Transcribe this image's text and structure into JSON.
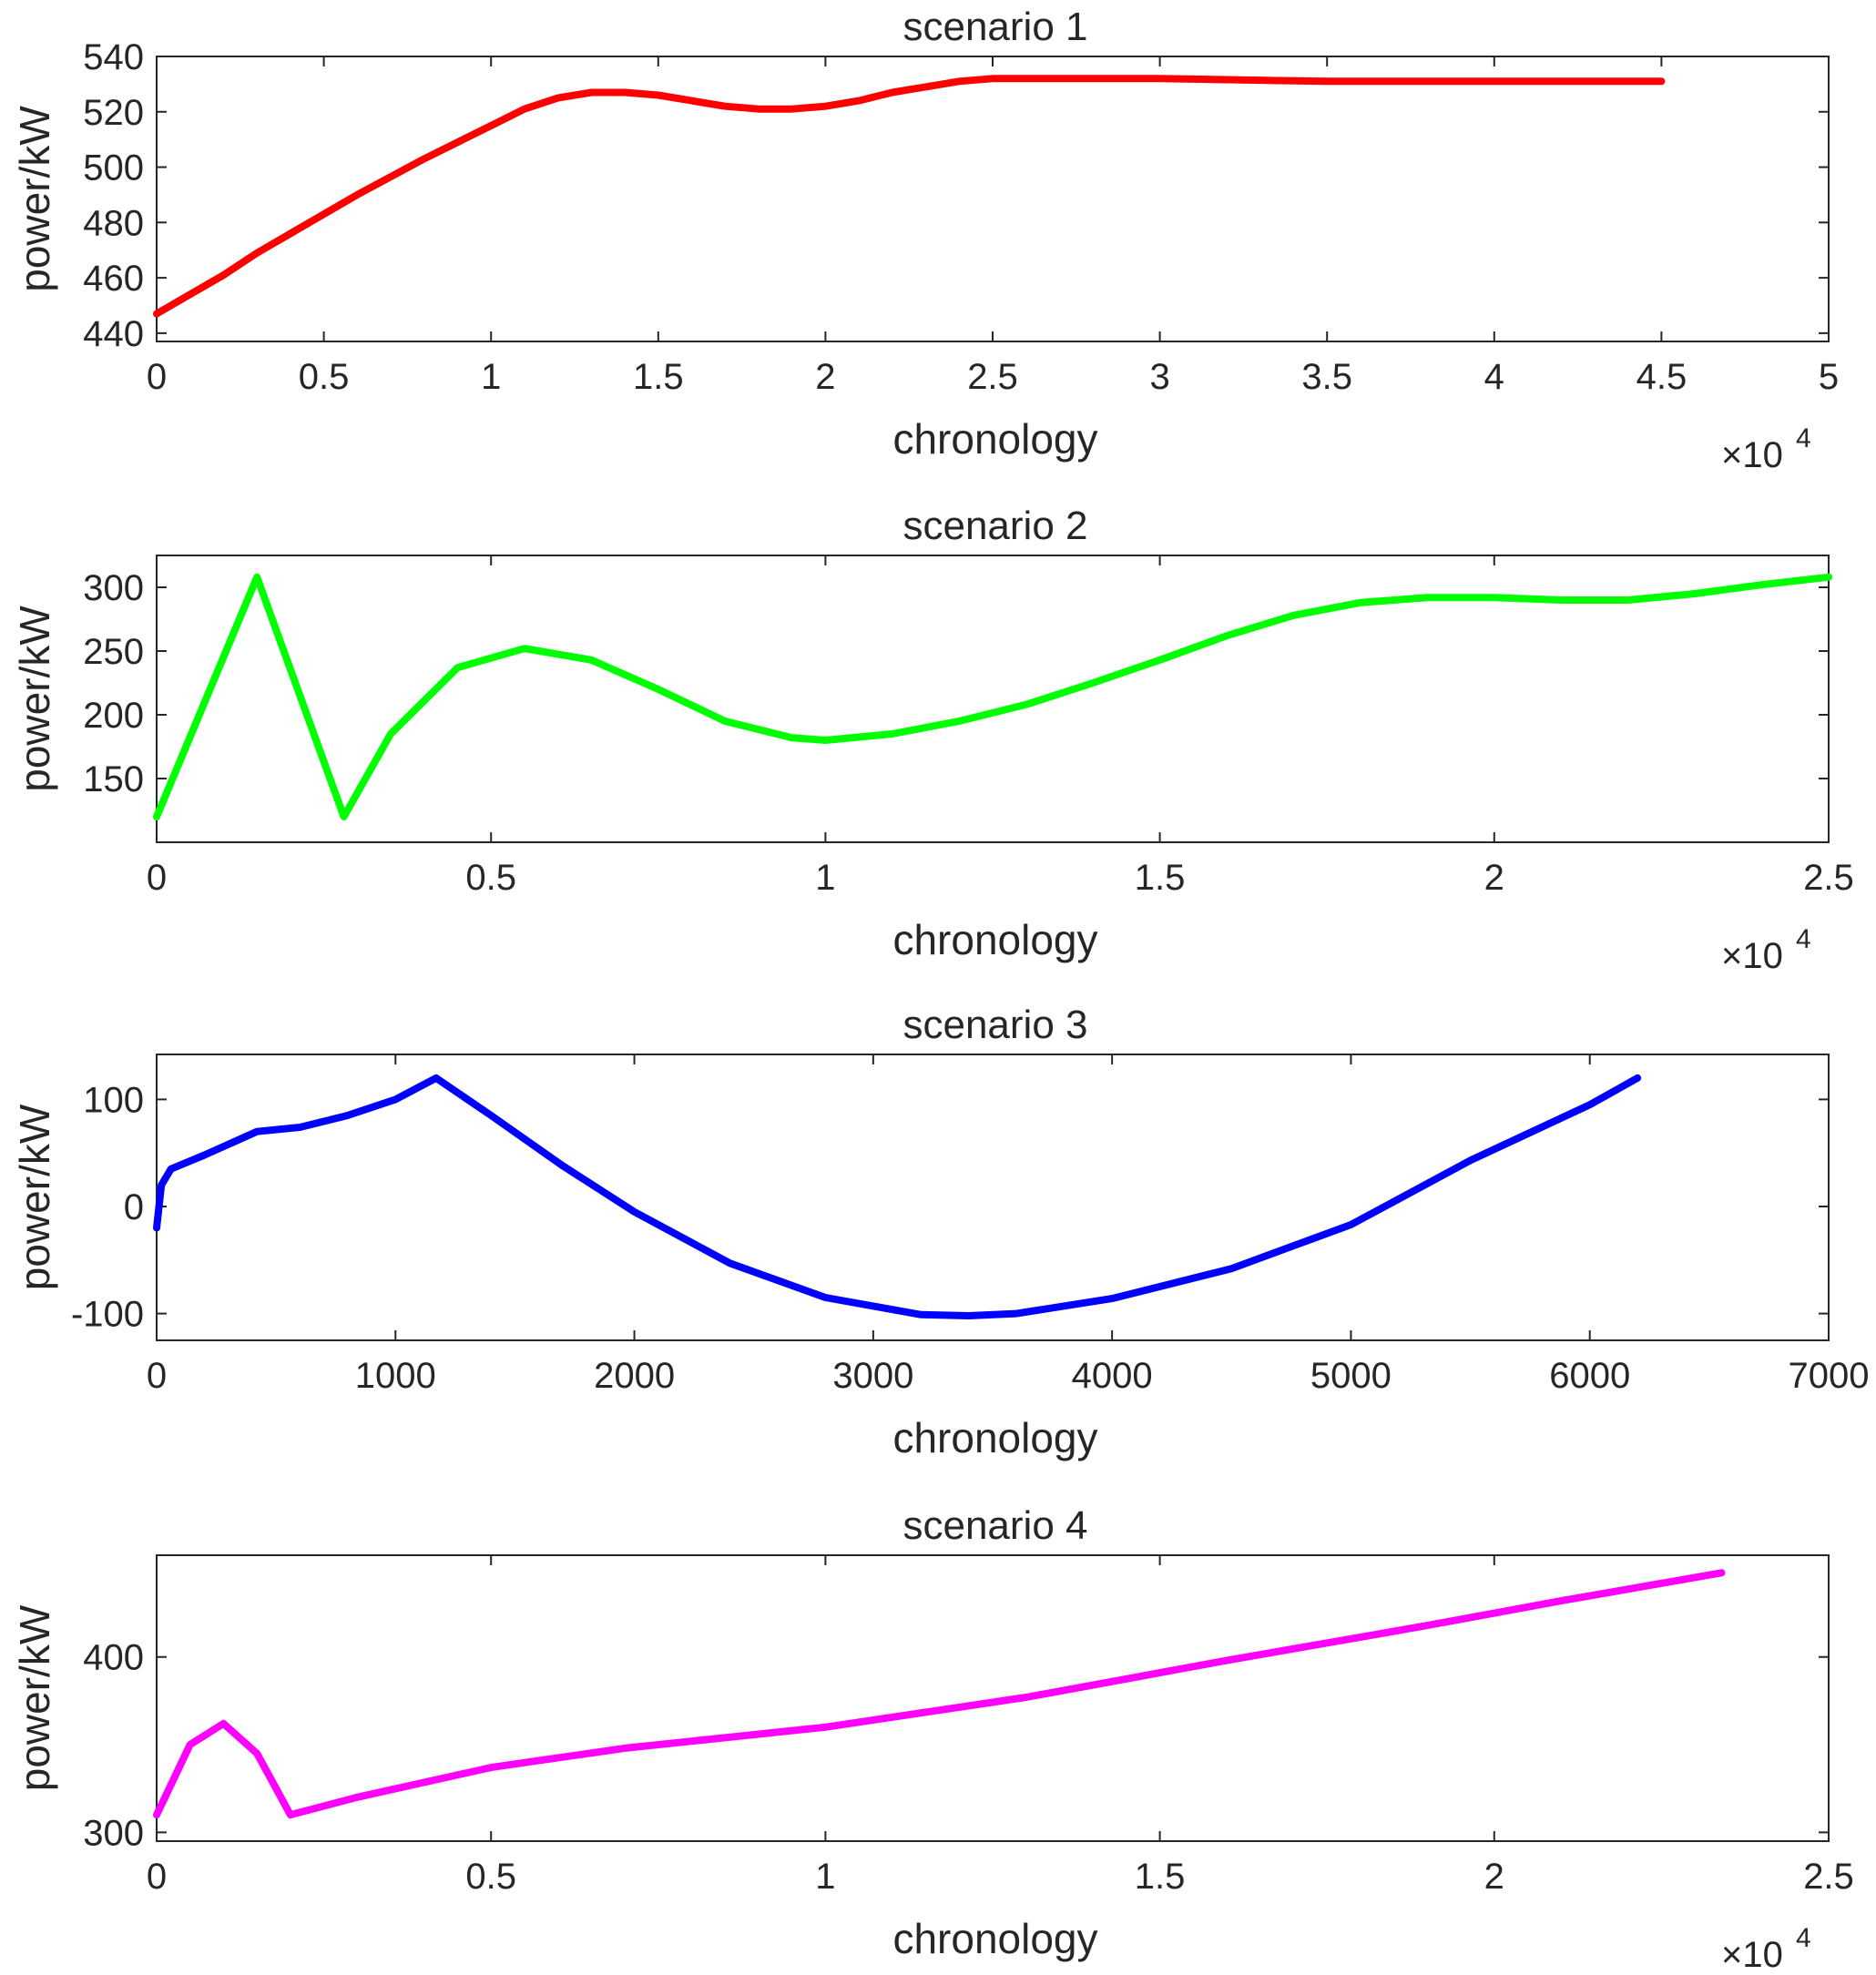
{
  "figure": {
    "background": "#ffffff",
    "axis_color": "#262626"
  },
  "chart_data": [
    {
      "type": "line",
      "title": "scenario 1",
      "xlabel": "chronology",
      "ylabel": "power/kW",
      "x_exponent": "4",
      "xlim": [
        0,
        5
      ],
      "ylim": [
        437,
        540
      ],
      "xticks": [
        0,
        0.5,
        1,
        1.5,
        2,
        2.5,
        3,
        3.5,
        4,
        4.5,
        5
      ],
      "xtick_labels": [
        "0",
        "0.5",
        "1",
        "1.5",
        "2",
        "2.5",
        "3",
        "3.5",
        "4",
        "4.5",
        "5"
      ],
      "yticks": [
        440,
        460,
        480,
        500,
        520,
        540
      ],
      "ytick_labels": [
        "440",
        "460",
        "480",
        "500",
        "520",
        "540"
      ],
      "grid": false,
      "series": [
        {
          "name": "scenario 1",
          "color": "#ff0000",
          "x": [
            0,
            0.1,
            0.2,
            0.3,
            0.4,
            0.6,
            0.8,
            1.0,
            1.1,
            1.2,
            1.3,
            1.4,
            1.5,
            1.6,
            1.7,
            1.8,
            1.9,
            2.0,
            2.1,
            2.2,
            2.3,
            2.4,
            2.5,
            2.6,
            2.8,
            3.0,
            3.5,
            4.0,
            4.5
          ],
          "y": [
            447,
            454,
            461,
            469,
            476,
            490,
            503,
            515,
            521,
            525,
            527,
            527,
            526,
            524,
            522,
            521,
            521,
            522,
            524,
            527,
            529,
            531,
            532,
            532,
            532,
            532,
            531,
            531,
            531
          ]
        }
      ]
    },
    {
      "type": "line",
      "title": "scenario 2",
      "xlabel": "chronology",
      "ylabel": "power/kW",
      "x_exponent": "4",
      "xlim": [
        0,
        2.5
      ],
      "ylim": [
        100,
        325
      ],
      "xticks": [
        0,
        0.5,
        1,
        1.5,
        2,
        2.5
      ],
      "xtick_labels": [
        "0",
        "0.5",
        "1",
        "1.5",
        "2",
        "2.5"
      ],
      "yticks": [
        150,
        200,
        250,
        300
      ],
      "ytick_labels": [
        "150",
        "200",
        "250",
        "300"
      ],
      "grid": false,
      "series": [
        {
          "name": "scenario 2",
          "color": "#00ff00",
          "x": [
            0,
            0.15,
            0.28,
            0.35,
            0.45,
            0.55,
            0.65,
            0.75,
            0.85,
            0.95,
            1.0,
            1.1,
            1.2,
            1.3,
            1.4,
            1.5,
            1.6,
            1.7,
            1.8,
            1.9,
            2.0,
            2.1,
            2.2,
            2.3,
            2.4,
            2.5
          ],
          "y": [
            120,
            308,
            120,
            185,
            237,
            252,
            243,
            220,
            195,
            182,
            180,
            185,
            195,
            208,
            225,
            243,
            262,
            278,
            288,
            292,
            292,
            290,
            290,
            295,
            302,
            308
          ]
        }
      ]
    },
    {
      "type": "line",
      "title": "scenario 3",
      "xlabel": "chronology",
      "ylabel": "power/kW",
      "x_exponent": "",
      "xlim": [
        0,
        7000
      ],
      "ylim": [
        -125,
        142
      ],
      "xticks": [
        0,
        1000,
        2000,
        3000,
        4000,
        5000,
        6000,
        7000
      ],
      "xtick_labels": [
        "0",
        "1000",
        "2000",
        "3000",
        "4000",
        "5000",
        "6000",
        "7000"
      ],
      "yticks": [
        -100,
        0,
        100
      ],
      "ytick_labels": [
        "-100",
        "0",
        "100"
      ],
      "grid": false,
      "series": [
        {
          "name": "scenario 3",
          "color": "#0000ff",
          "x": [
            0,
            20,
            60,
            200,
            420,
            600,
            800,
            1000,
            1170,
            1400,
            1700,
            2000,
            2400,
            2800,
            3200,
            3400,
            3600,
            4000,
            4500,
            5000,
            5500,
            6000,
            6200
          ],
          "y": [
            -20,
            20,
            35,
            48,
            70,
            74,
            85,
            100,
            120,
            85,
            38,
            -5,
            -53,
            -85,
            -101,
            -102,
            -100,
            -86,
            -58,
            -17,
            43,
            95,
            120
          ]
        }
      ]
    },
    {
      "type": "line",
      "title": "scenario 4",
      "xlabel": "chronology",
      "ylabel": "power/kW",
      "x_exponent": "4",
      "xlim": [
        0,
        2.5
      ],
      "ylim": [
        295,
        458
      ],
      "xticks": [
        0,
        0.5,
        1,
        1.5,
        2,
        2.5
      ],
      "xtick_labels": [
        "0",
        "0.5",
        "1",
        "1.5",
        "2",
        "2.5"
      ],
      "yticks": [
        300,
        400
      ],
      "ytick_labels": [
        "300",
        "400"
      ],
      "grid": false,
      "series": [
        {
          "name": "scenario 4",
          "color": "#ff00ff",
          "x": [
            0,
            0.05,
            0.1,
            0.15,
            0.2,
            0.3,
            0.5,
            0.7,
            1.0,
            1.3,
            1.6,
            1.9,
            2.1,
            2.34
          ],
          "y": [
            310,
            350,
            362,
            345,
            310,
            320,
            337,
            348,
            360,
            377,
            398,
            418,
            432,
            448
          ]
        }
      ]
    }
  ]
}
